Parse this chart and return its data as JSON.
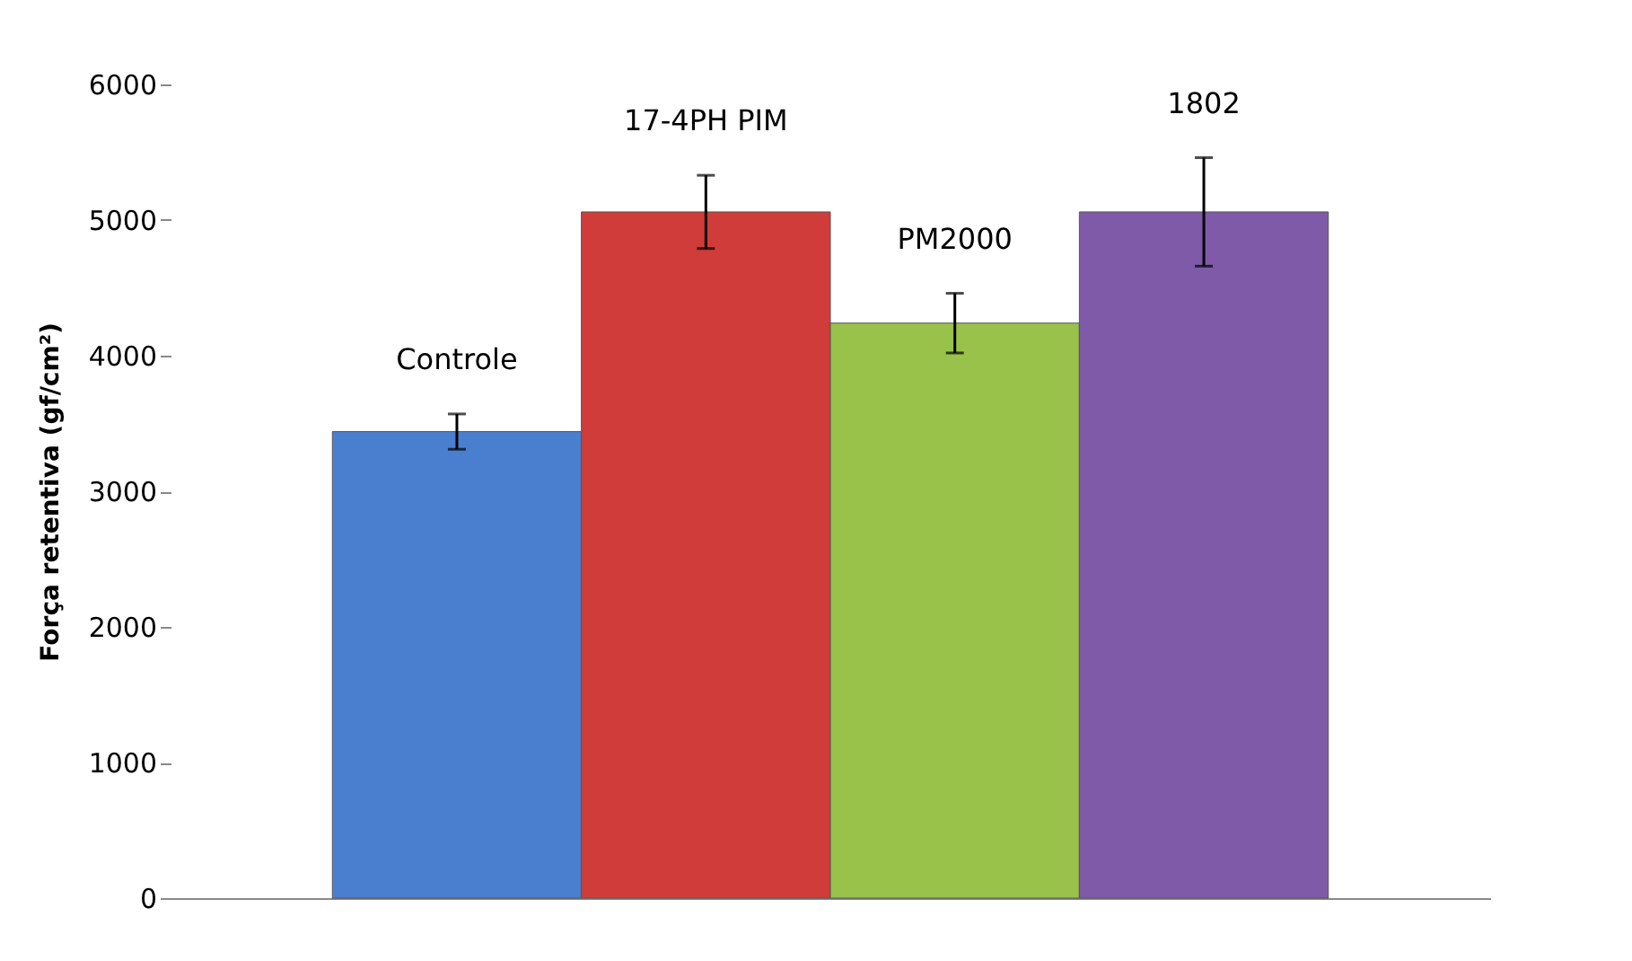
{
  "chart_data": {
    "type": "bar",
    "ylabel": "Força retentiva (gf/cm²)",
    "categories": [
      "Controle",
      "17-4PH PIM",
      "PM2000",
      "1802"
    ],
    "values": [
      3440,
      5060,
      4240,
      5060
    ],
    "errors": [
      130,
      270,
      220,
      400
    ],
    "colors": [
      "#4a7fcf",
      "#d03c3a",
      "#98c24a",
      "#7e5aa8"
    ],
    "ylim": [
      0,
      6000
    ],
    "yticks": [
      0,
      1000,
      2000,
      3000,
      4000,
      5000,
      6000
    ],
    "grid": false,
    "tick_labels": "y"
  }
}
